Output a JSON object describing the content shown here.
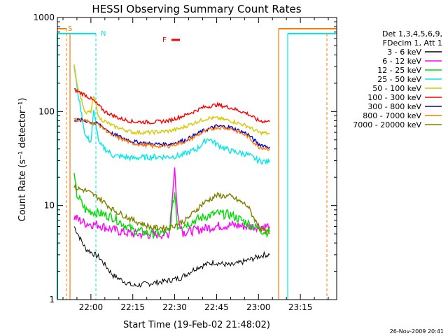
{
  "chart_data": {
    "type": "line",
    "title": "HESSI Observing Summary Count Rates",
    "xlabel": "Start Time (19-Feb-02 21:48:02)",
    "ylabel": "Count Rate (s⁻¹ detector⁻¹)",
    "y_scale": "log",
    "ylim": [
      1,
      1000
    ],
    "xlim": [
      "21:48",
      "23:28"
    ],
    "x_ticks": [
      "22:00",
      "22:15",
      "22:30",
      "22:45",
      "23:00",
      "23:15"
    ],
    "y_ticks": [
      "1",
      "10",
      "100",
      "1000"
    ],
    "legend_header": [
      "Det 1,3,4,5,6,9,",
      "FDecim 1, Att 1"
    ],
    "legend_position": "right",
    "series": [
      {
        "name": "3 - 6 keV",
        "color": "#000000",
        "x": [
          "21:54",
          "21:58",
          "22:03",
          "22:08",
          "22:15",
          "22:22",
          "22:28",
          "22:32",
          "22:38",
          "22:44",
          "22:50",
          "22:56",
          "23:02",
          "23:04"
        ],
        "y": [
          6,
          3.5,
          2.8,
          1.8,
          1.4,
          1.5,
          1.6,
          1.7,
          2.2,
          2.5,
          2.3,
          2.6,
          3,
          3
        ]
      },
      {
        "name": "6 - 12 keV",
        "color": "#ff00ff",
        "x": [
          "21:54",
          "21:58",
          "22:03",
          "22:08",
          "22:15",
          "22:22",
          "22:28",
          "22:30",
          "22:31",
          "22:33",
          "22:38",
          "22:44",
          "22:50",
          "22:56",
          "23:02",
          "23:04"
        ],
        "y": [
          7.5,
          6.5,
          6.2,
          5.5,
          5.0,
          4.9,
          5.0,
          25,
          8,
          5.2,
          5.5,
          6.0,
          6.2,
          6.0,
          6.0,
          6.0
        ]
      },
      {
        "name": "12 - 25 keV",
        "color": "#00dd00",
        "x": [
          "21:54",
          "21:55",
          "21:58",
          "22:03",
          "22:08",
          "22:15",
          "22:22",
          "22:28",
          "22:30",
          "22:31",
          "22:35",
          "22:40",
          "22:45",
          "22:50",
          "22:56",
          "23:02",
          "23:04"
        ],
        "y": [
          20,
          13,
          9,
          8.3,
          7.5,
          5.5,
          5.0,
          5.2,
          14,
          6,
          6.5,
          7.5,
          8.2,
          8.0,
          6.5,
          5.3,
          5.2
        ]
      },
      {
        "name": "25 - 50 keV",
        "color": "#00e8e8",
        "x": [
          "21:54",
          "21:55",
          "21:58",
          "22:00",
          "22:01",
          "22:03",
          "22:08",
          "22:15",
          "22:22",
          "22:28",
          "22:32",
          "22:38",
          "22:42",
          "22:45",
          "22:50",
          "22:56",
          "23:00",
          "23:04"
        ],
        "y": [
          310,
          180,
          55,
          48,
          100,
          45,
          34,
          32,
          33,
          33,
          34,
          40,
          52,
          45,
          38,
          35,
          30,
          29
        ]
      },
      {
        "name": "50 - 100 keV",
        "color": "#d8c800",
        "x": [
          "21:54",
          "21:55",
          "21:58",
          "22:00",
          "22:01",
          "22:03",
          "22:08",
          "22:15",
          "22:22",
          "22:28",
          "22:32",
          "22:38",
          "22:42",
          "22:45",
          "22:50",
          "22:56",
          "23:00",
          "23:04"
        ],
        "y": [
          330,
          200,
          95,
          100,
          145,
          85,
          70,
          60,
          60,
          62,
          66,
          78,
          85,
          85,
          80,
          70,
          60,
          58
        ]
      },
      {
        "name": "100 - 300 keV",
        "color": "#ff0000",
        "x": [
          "21:54",
          "21:58",
          "22:01",
          "22:05",
          "22:10",
          "22:15",
          "22:22",
          "22:28",
          "22:34",
          "22:40",
          "22:45",
          "22:50",
          "22:56",
          "23:00",
          "23:04"
        ],
        "y": [
          170,
          150,
          130,
          100,
          85,
          78,
          77,
          80,
          92,
          110,
          118,
          110,
          95,
          80,
          78
        ]
      },
      {
        "name": "300 - 800 keV",
        "color": "#0000cc",
        "x": [
          "21:54",
          "21:58",
          "22:03",
          "22:08",
          "22:15",
          "22:22",
          "22:28",
          "22:34",
          "22:40",
          "22:45",
          "22:50",
          "22:56",
          "23:00",
          "23:04"
        ],
        "y": [
          82,
          80,
          73,
          57,
          48,
          45,
          45,
          50,
          62,
          70,
          68,
          58,
          45,
          42
        ]
      },
      {
        "name": "800 - 7000 keV",
        "color": "#ff7700",
        "x": [
          "21:54",
          "21:58",
          "22:03",
          "22:08",
          "22:15",
          "22:22",
          "22:28",
          "22:34",
          "22:40",
          "22:45",
          "22:50",
          "22:56",
          "23:00",
          "23:04"
        ],
        "y": [
          82,
          80,
          72,
          55,
          46,
          43,
          43,
          48,
          60,
          68,
          66,
          55,
          42,
          40
        ]
      },
      {
        "name": "7000 - 20000 keV",
        "color": "#808000",
        "x": [
          "21:54",
          "21:58",
          "22:03",
          "22:08",
          "22:15",
          "22:22",
          "22:28",
          "22:34",
          "22:40",
          "22:45",
          "22:50",
          "22:56",
          "23:00",
          "23:04"
        ],
        "y": [
          15.5,
          14.5,
          12,
          9.0,
          7.0,
          5.8,
          5.8,
          7.0,
          10.5,
          12.8,
          12.5,
          10,
          6.0,
          5.0
        ]
      }
    ],
    "annotations": [
      {
        "text": "S",
        "color": "#ff7700"
      },
      {
        "text": "N",
        "color": "#00e8e8"
      },
      {
        "text": "F",
        "color": "#ff0000"
      }
    ],
    "footer_timestamp": "26-Nov-2009 20:41"
  }
}
